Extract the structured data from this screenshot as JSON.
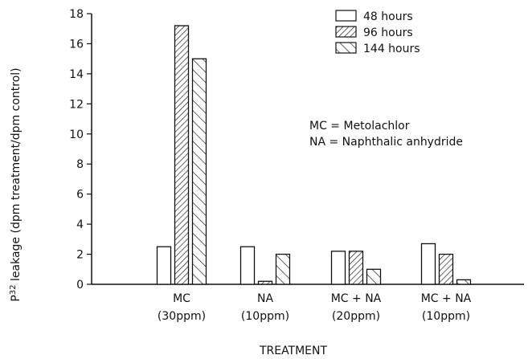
{
  "chart_data": {
    "type": "bar",
    "title": "",
    "xlabel": "TREATMENT",
    "ylabel_main": "P",
    "ylabel_sup": "32",
    "ylabel_rest": " leakage (dpm treatment/dpm control)",
    "ylim": [
      0,
      18
    ],
    "yticks": [
      0,
      2,
      4,
      6,
      8,
      10,
      12,
      14,
      16,
      18
    ],
    "grid": false,
    "legend_position": "top-right",
    "categories": [
      {
        "line1": "MC",
        "line2": "(30ppm)"
      },
      {
        "line1": "NA",
        "line2": "(10ppm)"
      },
      {
        "line1": "MC + NA",
        "line2": "(20ppm)"
      },
      {
        "line1": "MC + NA",
        "line2": "(10ppm)"
      }
    ],
    "series": [
      {
        "name": "48 hours",
        "pattern": "none",
        "values": [
          2.5,
          2.5,
          2.2,
          2.7
        ]
      },
      {
        "name": "96 hours",
        "pattern": "dense-diagonal",
        "values": [
          17.2,
          0.2,
          2.2,
          2.0
        ]
      },
      {
        "name": "144 hours",
        "pattern": "sparse-diagonal",
        "values": [
          15.0,
          2.0,
          1.0,
          0.3
        ]
      }
    ],
    "annotations": [
      "MC = Metolachlor",
      "NA = Naphthalic anhydride"
    ]
  }
}
